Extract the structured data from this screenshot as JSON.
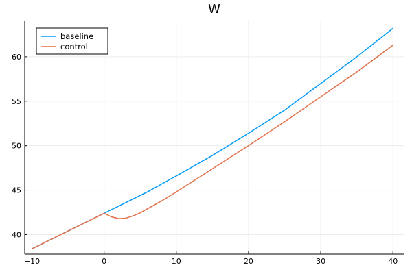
{
  "chart_data": {
    "type": "line",
    "title": "W",
    "xlabel": "",
    "ylabel": "",
    "xlim": [
      -11,
      41.5
    ],
    "ylim": [
      37.8,
      64
    ],
    "xticks": [
      -10,
      0,
      10,
      20,
      30,
      40
    ],
    "yticks": [
      40,
      45,
      50,
      55,
      60
    ],
    "grid": true,
    "legend_position": "top-left",
    "x": [
      -10,
      -8,
      -6,
      -4,
      -2,
      0,
      1,
      2,
      3,
      4,
      5,
      6,
      8,
      10,
      15,
      20,
      25,
      30,
      35,
      40
    ],
    "series": [
      {
        "name": "baseline",
        "color": "#009af9",
        "values": [
          38.4,
          39.2,
          40.0,
          40.8,
          41.6,
          42.4,
          42.8,
          43.2,
          43.6,
          44.0,
          44.4,
          44.8,
          45.7,
          46.6,
          48.9,
          51.4,
          54.0,
          57.0,
          60.0,
          63.2
        ]
      },
      {
        "name": "control",
        "color": "#e26f46",
        "values": [
          38.4,
          39.2,
          40.0,
          40.8,
          41.6,
          42.4,
          42.0,
          41.8,
          41.85,
          42.1,
          42.45,
          42.9,
          43.8,
          44.8,
          47.4,
          50.0,
          52.7,
          55.5,
          58.3,
          61.3
        ]
      }
    ]
  }
}
